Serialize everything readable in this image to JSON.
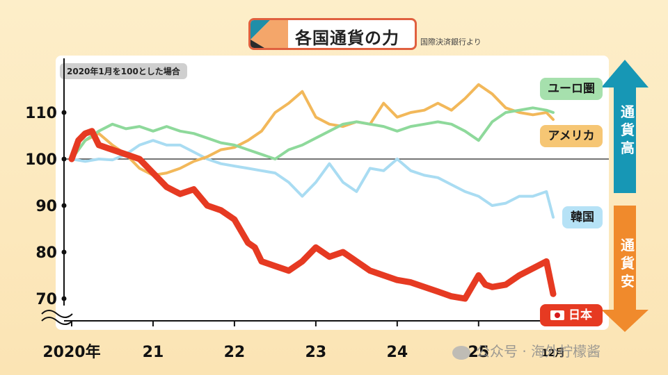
{
  "title": "各国通貨の力",
  "source": "国際決済銀行より",
  "note": "2020年1月を100とした場合",
  "side_labels": {
    "strong": "通貨高",
    "weak": "通貨安"
  },
  "watermark": "公众号 · 海外柠檬酱",
  "colors": {
    "japan": "#e63a22",
    "euro": "#8ed99b",
    "usa": "#f2b85a",
    "korea": "#a9dcf2",
    "arrow_up": "#1797b5",
    "arrow_down": "#f08a2c"
  },
  "chart_data": {
    "type": "line",
    "ylim": [
      65,
      122
    ],
    "yticks": [
      {
        "value": 110,
        "label": "110"
      },
      {
        "value": 100,
        "label": "100"
      },
      {
        "value": 90,
        "label": "90"
      },
      {
        "value": 80,
        "label": "80"
      },
      {
        "value": 70,
        "label": "70"
      }
    ],
    "reference_line": 100,
    "xticks": [
      {
        "month": 0,
        "label": "2020年"
      },
      {
        "month": 12,
        "label": "21"
      },
      {
        "month": 24,
        "label": "22"
      },
      {
        "month": 36,
        "label": "23"
      },
      {
        "month": 48,
        "label": "24"
      },
      {
        "month": 60,
        "label": "25"
      },
      {
        "month": 71,
        "label": "12月"
      }
    ],
    "series": [
      {
        "name": "ユーロ圏",
        "key": "euro",
        "x": [
          0,
          2,
          4,
          6,
          8,
          10,
          12,
          14,
          16,
          18,
          20,
          22,
          24,
          26,
          28,
          30,
          32,
          34,
          36,
          38,
          40,
          42,
          44,
          46,
          48,
          50,
          52,
          54,
          56,
          58,
          60,
          62,
          64,
          66,
          68,
          70,
          71
        ],
        "values": [
          100,
          104,
          106,
          107.5,
          106.5,
          107,
          106,
          107,
          106,
          105.5,
          104.5,
          103.5,
          103,
          102,
          101,
          100,
          102,
          103,
          104.5,
          106,
          107.5,
          108,
          107.5,
          107,
          106,
          107,
          107.5,
          108,
          107.5,
          106,
          104,
          108,
          110,
          110.5,
          111,
          110.5,
          110
        ]
      },
      {
        "name": "アメリカ",
        "key": "usa",
        "x": [
          0,
          2,
          4,
          6,
          8,
          10,
          12,
          14,
          16,
          18,
          20,
          22,
          24,
          26,
          28,
          30,
          32,
          34,
          36,
          38,
          40,
          42,
          44,
          46,
          48,
          50,
          52,
          54,
          56,
          58,
          60,
          62,
          64,
          66,
          68,
          70,
          71
        ],
        "values": [
          100,
          104,
          105.5,
          103,
          101,
          98,
          96.5,
          97,
          98,
          99.5,
          100.5,
          102,
          102.5,
          104,
          106,
          110,
          112,
          114.5,
          109,
          107.5,
          107,
          108,
          107.5,
          112,
          109,
          110,
          110.5,
          112,
          110.5,
          113,
          116,
          114,
          111,
          110,
          109.5,
          110,
          108.5
        ]
      },
      {
        "name": "韓国",
        "key": "korea",
        "x": [
          0,
          2,
          4,
          6,
          8,
          10,
          12,
          14,
          16,
          18,
          20,
          22,
          24,
          26,
          28,
          30,
          32,
          34,
          36,
          38,
          40,
          42,
          44,
          46,
          48,
          50,
          52,
          54,
          56,
          58,
          60,
          62,
          64,
          66,
          68,
          70,
          71
        ],
        "values": [
          100,
          99.5,
          100,
          99.8,
          101,
          103,
          104,
          103,
          103,
          101.5,
          100,
          99,
          98.5,
          98,
          97.5,
          97,
          95,
          92,
          95,
          99,
          95,
          93,
          98,
          97.5,
          100,
          97.5,
          96.5,
          96,
          94.5,
          93,
          92,
          90,
          90.5,
          92,
          92,
          93,
          87.5
        ]
      },
      {
        "name": "日本",
        "key": "japan",
        "x": [
          0,
          1,
          2,
          3,
          4,
          5,
          6,
          8,
          10,
          12,
          14,
          16,
          18,
          20,
          22,
          24,
          26,
          27,
          28,
          30,
          32,
          34,
          36,
          38,
          40,
          42,
          44,
          46,
          48,
          50,
          52,
          54,
          56,
          58,
          60,
          61,
          62,
          64,
          66,
          68,
          70,
          71
        ],
        "values": [
          100,
          104,
          105.5,
          106,
          103,
          102.5,
          102,
          101,
          100,
          97,
          94,
          92.5,
          93.5,
          90,
          89,
          87,
          82,
          81,
          78,
          77,
          76,
          78,
          81,
          79,
          80,
          78,
          76,
          75,
          74,
          73.5,
          72.5,
          71.5,
          70.5,
          70,
          75,
          73,
          72.5,
          73,
          75,
          76.5,
          78,
          71
        ]
      }
    ]
  }
}
